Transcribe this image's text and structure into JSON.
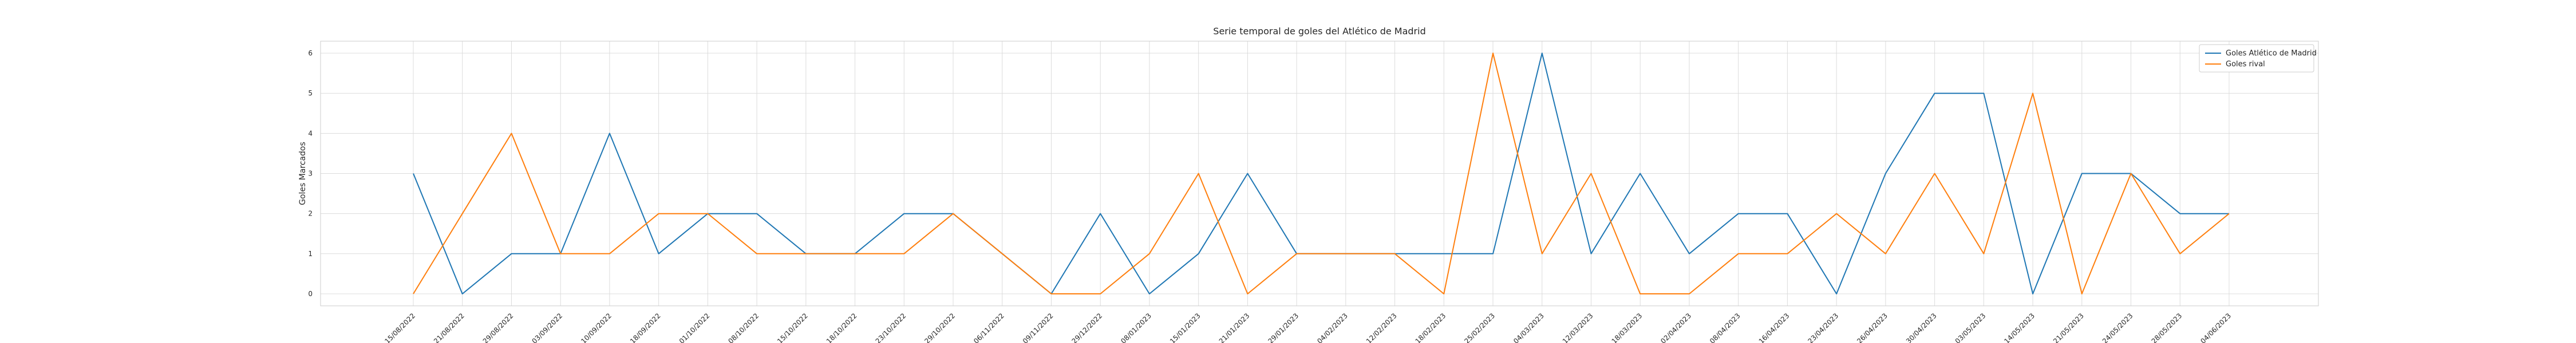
{
  "chart_data": {
    "type": "line",
    "title": "Serie temporal de goles del Atlético de Madrid",
    "xlabel": "",
    "ylabel": "Goles Marcados",
    "ylim": [
      -0.3,
      6.3
    ],
    "yticks": [
      0,
      1,
      2,
      3,
      4,
      5,
      6
    ],
    "grid": true,
    "legend_position": "top-right",
    "categories": [
      "15/08/2022",
      "21/08/2022",
      "29/08/2022",
      "03/09/2022",
      "10/09/2022",
      "18/09/2022",
      "01/10/2022",
      "08/10/2022",
      "15/10/2022",
      "18/10/2022",
      "23/10/2022",
      "29/10/2022",
      "06/11/2022",
      "09/11/2022",
      "29/12/2022",
      "08/01/2023",
      "15/01/2023",
      "21/01/2023",
      "29/01/2023",
      "04/02/2023",
      "12/02/2023",
      "18/02/2023",
      "25/02/2023",
      "04/03/2023",
      "12/03/2023",
      "18/03/2023",
      "02/04/2023",
      "08/04/2023",
      "16/04/2023",
      "23/04/2023",
      "26/04/2023",
      "30/04/2023",
      "03/05/2023",
      "14/05/2023",
      "21/05/2023",
      "24/05/2023",
      "28/05/2023",
      "04/06/2023"
    ],
    "series": [
      {
        "name": "Goles Atlético de Madrid",
        "color": "#1f77b4",
        "values": [
          3,
          0,
          1,
          1,
          4,
          1,
          2,
          2,
          1,
          1,
          2,
          2,
          1,
          0,
          2,
          0,
          1,
          3,
          1,
          1,
          1,
          1,
          1,
          6,
          1,
          3,
          1,
          2,
          2,
          0,
          3,
          5,
          5,
          0,
          3,
          3,
          2,
          2
        ]
      },
      {
        "name": "Goles rival",
        "color": "#ff7f0e",
        "values": [
          0,
          2,
          4,
          1,
          1,
          2,
          2,
          1,
          1,
          1,
          1,
          2,
          1,
          0,
          0,
          1,
          3,
          0,
          1,
          1,
          1,
          0,
          6,
          1,
          3,
          0,
          0,
          1,
          1,
          2,
          1,
          3,
          1,
          5,
          0,
          3,
          1,
          2
        ]
      }
    ]
  }
}
